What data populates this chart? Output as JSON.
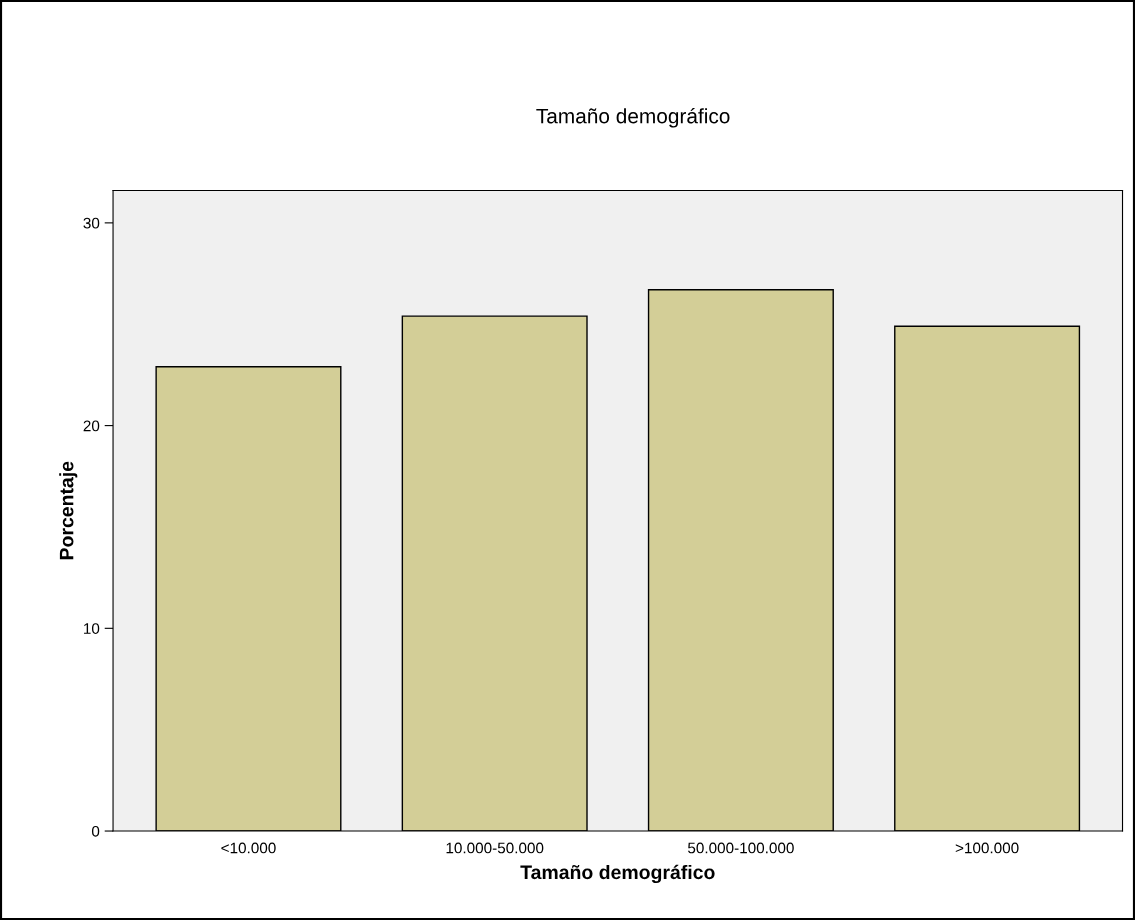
{
  "chart_data": {
    "type": "bar",
    "title": "Tamaño demográfico",
    "xlabel": "Tamaño demográfico",
    "ylabel": "Porcentaje",
    "categories": [
      "<10.000",
      "10.000-50.000",
      "50.000-100.000",
      ">100.000"
    ],
    "values": [
      22.9,
      25.4,
      26.7,
      24.9
    ],
    "color": "#d3ce97",
    "ylim": [
      0,
      31.6
    ],
    "yticks": [
      0,
      10,
      20,
      30
    ],
    "grid": false
  }
}
